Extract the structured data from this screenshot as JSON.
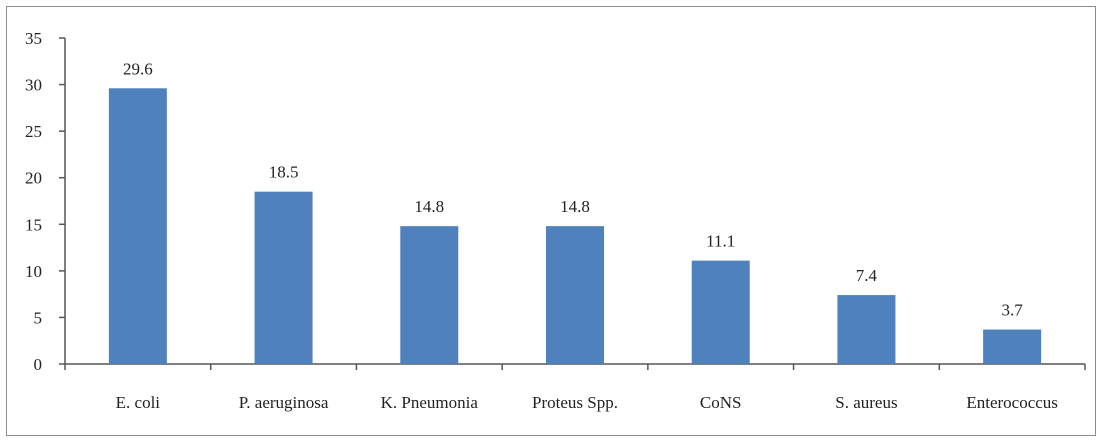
{
  "chart_data": {
    "type": "bar",
    "title": "",
    "xlabel": "",
    "ylabel": "",
    "categories": [
      "E. coli",
      "P. aeruginosa",
      "K. Pneumonia",
      "Proteus Spp.",
      "CoNS",
      "S. aureus",
      "Enterococcus"
    ],
    "values": [
      29.6,
      18.5,
      14.8,
      14.8,
      11.1,
      7.4,
      3.7
    ],
    "data_labels": [
      "29.6",
      "18.5",
      "14.8",
      "14.8",
      "11.1",
      "7.4",
      "3.7"
    ],
    "ylim": [
      0,
      35
    ],
    "yticks": [
      "0",
      "5",
      "10",
      "15",
      "20",
      "25",
      "30",
      "35"
    ],
    "grid": false,
    "legend": "none",
    "bar_color": "#4f81bd"
  }
}
